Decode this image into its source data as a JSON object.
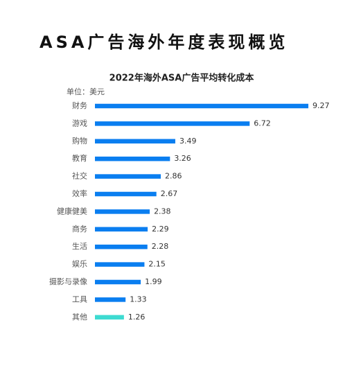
{
  "chart_data": {
    "type": "bar",
    "orientation": "horizontal",
    "title": "ASA广告海外年度表现概览",
    "subtitle": "2022年海外ASA广告平均转化成本",
    "unit_label": "单位：美元",
    "categories": [
      "财务",
      "游戏",
      "购物",
      "教育",
      "社交",
      "效率",
      "健康健美",
      "商务",
      "生活",
      "娱乐",
      "摄影与录像",
      "工具",
      "其他"
    ],
    "values": [
      9.27,
      6.72,
      3.49,
      3.26,
      2.86,
      2.67,
      2.38,
      2.29,
      2.28,
      2.15,
      1.99,
      1.33,
      1.26
    ],
    "colors": [
      "#0a7ef0",
      "#0a7ef0",
      "#0a7ef0",
      "#0a7ef0",
      "#0a7ef0",
      "#0a7ef0",
      "#0a7ef0",
      "#0a7ef0",
      "#0a7ef0",
      "#0a7ef0",
      "#0a7ef0",
      "#0a7ef0",
      "#3ddbd1"
    ]
  }
}
